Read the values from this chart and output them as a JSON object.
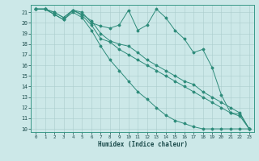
{
  "xlabel": "Humidex (Indice chaleur)",
  "bg_color": "#cce8e8",
  "grid_color": "#aacccc",
  "line_color": "#2d8b7a",
  "xlim": [
    -0.5,
    23.5
  ],
  "ylim": [
    9.7,
    21.7
  ],
  "yticks": [
    10,
    11,
    12,
    13,
    14,
    15,
    16,
    17,
    18,
    19,
    20,
    21
  ],
  "xticks": [
    0,
    1,
    2,
    3,
    4,
    5,
    6,
    7,
    8,
    9,
    10,
    11,
    12,
    13,
    14,
    15,
    16,
    17,
    18,
    19,
    20,
    21,
    22,
    23
  ],
  "series": [
    [
      21.3,
      21.3,
      21.0,
      20.5,
      21.2,
      21.0,
      20.0,
      19.7,
      19.5,
      19.8,
      21.2,
      19.3,
      19.8,
      21.3,
      20.5,
      19.3,
      18.5,
      17.2,
      17.5,
      15.8,
      13.2,
      11.5,
      11.4,
      10.0
    ],
    [
      21.3,
      21.3,
      21.0,
      20.5,
      21.2,
      20.8,
      20.2,
      19.0,
      18.3,
      18.0,
      17.8,
      17.2,
      16.5,
      16.0,
      15.5,
      15.0,
      14.5,
      14.2,
      13.5,
      13.0,
      12.5,
      12.0,
      11.5,
      10.0
    ],
    [
      21.3,
      21.3,
      20.8,
      20.3,
      21.2,
      20.7,
      19.8,
      18.5,
      18.2,
      17.5,
      17.0,
      16.5,
      16.0,
      15.5,
      15.0,
      14.5,
      14.0,
      13.5,
      13.0,
      12.5,
      12.0,
      11.5,
      11.2,
      10.0
    ],
    [
      21.3,
      21.3,
      20.8,
      20.3,
      21.0,
      20.5,
      19.3,
      17.8,
      16.5,
      15.5,
      14.5,
      13.5,
      12.8,
      12.0,
      11.3,
      10.8,
      10.5,
      10.2,
      10.0,
      10.0,
      10.0,
      10.0,
      10.0,
      10.0
    ]
  ]
}
